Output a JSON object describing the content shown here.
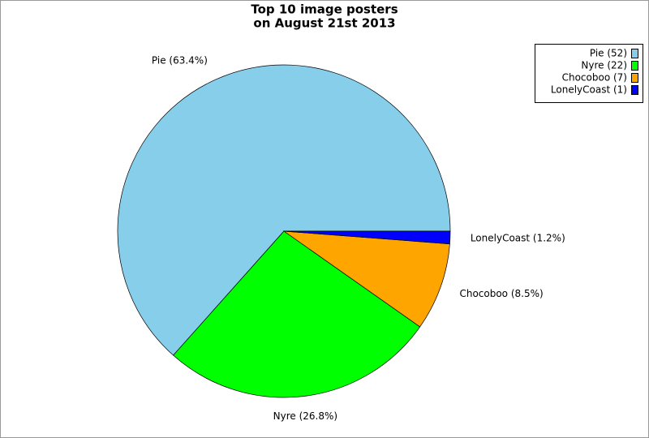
{
  "chart_data": {
    "type": "pie",
    "title": [
      "Top 10 image posters",
      "on August 21st 2013"
    ],
    "categories": [
      "Pie",
      "Nyre",
      "Chocoboo",
      "LonelyCoast"
    ],
    "values": [
      52,
      22,
      7,
      1
    ],
    "value_labels": [
      "Pie (52)",
      "Nyre (22)",
      "Chocoboo (7)",
      "LonelyCoast (1)"
    ],
    "slice_labels": [
      "Pie (63.4%)",
      "Nyre (26.8%)",
      "Chocoboo (8.5%)",
      "LonelyCoast (1.2%)"
    ],
    "colors": [
      "#87ceeb",
      "#00ff00",
      "#ffa500",
      "#0000ff"
    ],
    "legend": "top-right"
  }
}
